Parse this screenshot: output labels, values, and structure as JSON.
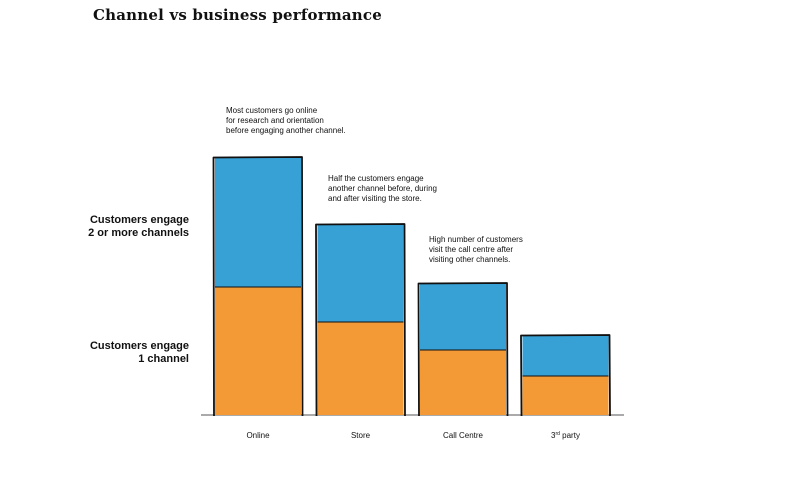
{
  "chart_data": {
    "type": "bar",
    "stacked": true,
    "title": "Channel vs business performance",
    "categories": [
      "Online",
      "Store",
      "Call Centre",
      "3rd party"
    ],
    "series": [
      {
        "name": "Customers engage\n1 channel",
        "color": "#f39a36",
        "values": [
          128,
          93,
          65,
          39
        ]
      },
      {
        "name": "Customers engage\n2 or more channels",
        "color": "#37a0d4",
        "values": [
          129,
          97,
          66,
          40
        ]
      }
    ],
    "annotations": [
      "Most customers go online\nfor research and orientation\nbefore engaging another channel.",
      "Half the customers engage\nanother channel before, during\nand after visiting the store.",
      "High number of customers\nvisit the call centre after\nvisiting other channels."
    ],
    "legend_placement": "left",
    "grid": false,
    "ylim": [
      0,
      257
    ]
  }
}
